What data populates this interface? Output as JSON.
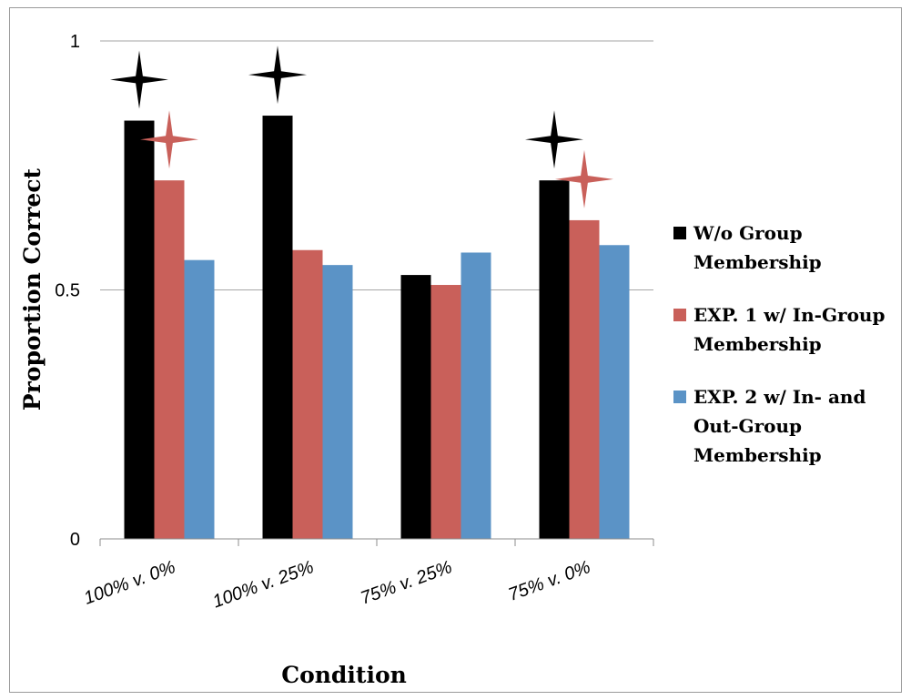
{
  "chart_data": {
    "type": "bar",
    "title": "",
    "xlabel": "Condition",
    "ylabel": "Proportion Correct",
    "ylim": [
      0,
      1
    ],
    "yticks": [
      "0",
      "0.5",
      "1"
    ],
    "grid": true,
    "legend_position": "right",
    "categories": [
      "100% v. 0%",
      "100% v. 25%",
      "75% v. 25%",
      "75% v. 0%"
    ],
    "series": [
      {
        "name": "W/o Group Membership",
        "color": "#000000",
        "values": [
          0.84,
          0.85,
          0.53,
          0.72
        ]
      },
      {
        "name": "EXP. 1 w/ In-Group Membership",
        "color": "#c9605a",
        "values": [
          0.72,
          0.58,
          0.51,
          0.64
        ]
      },
      {
        "name": "EXP. 2 w/ In- and Out-Group Membership",
        "color": "#5b93c6",
        "values": [
          0.56,
          0.55,
          0.575,
          0.59
        ]
      }
    ],
    "significance_markers": [
      {
        "category": "100% v. 0%",
        "series": "W/o Group Membership",
        "symbol": "star-4",
        "color": "#000000"
      },
      {
        "category": "100% v. 0%",
        "series": "EXP. 1 w/ In-Group Membership",
        "symbol": "star-4",
        "color": "#c9605a"
      },
      {
        "category": "100% v. 25%",
        "series": "W/o Group Membership",
        "symbol": "star-4",
        "color": "#000000"
      },
      {
        "category": "75% v. 0%",
        "series": "W/o Group Membership",
        "symbol": "star-4",
        "color": "#000000"
      },
      {
        "category": "75% v. 0%",
        "series": "EXP. 1 w/ In-Group Membership",
        "symbol": "star-4",
        "color": "#c9605a"
      }
    ]
  },
  "legend": {
    "items": [
      {
        "text": "W/o Group\nMembership",
        "color": "#000000"
      },
      {
        "text": "EXP. 1 w/ In-Group\nMembership",
        "color": "#c9605a"
      },
      {
        "text": "EXP. 2 w/ In- and\nOut-Group\nMembership",
        "color": "#5b93c6"
      }
    ]
  }
}
